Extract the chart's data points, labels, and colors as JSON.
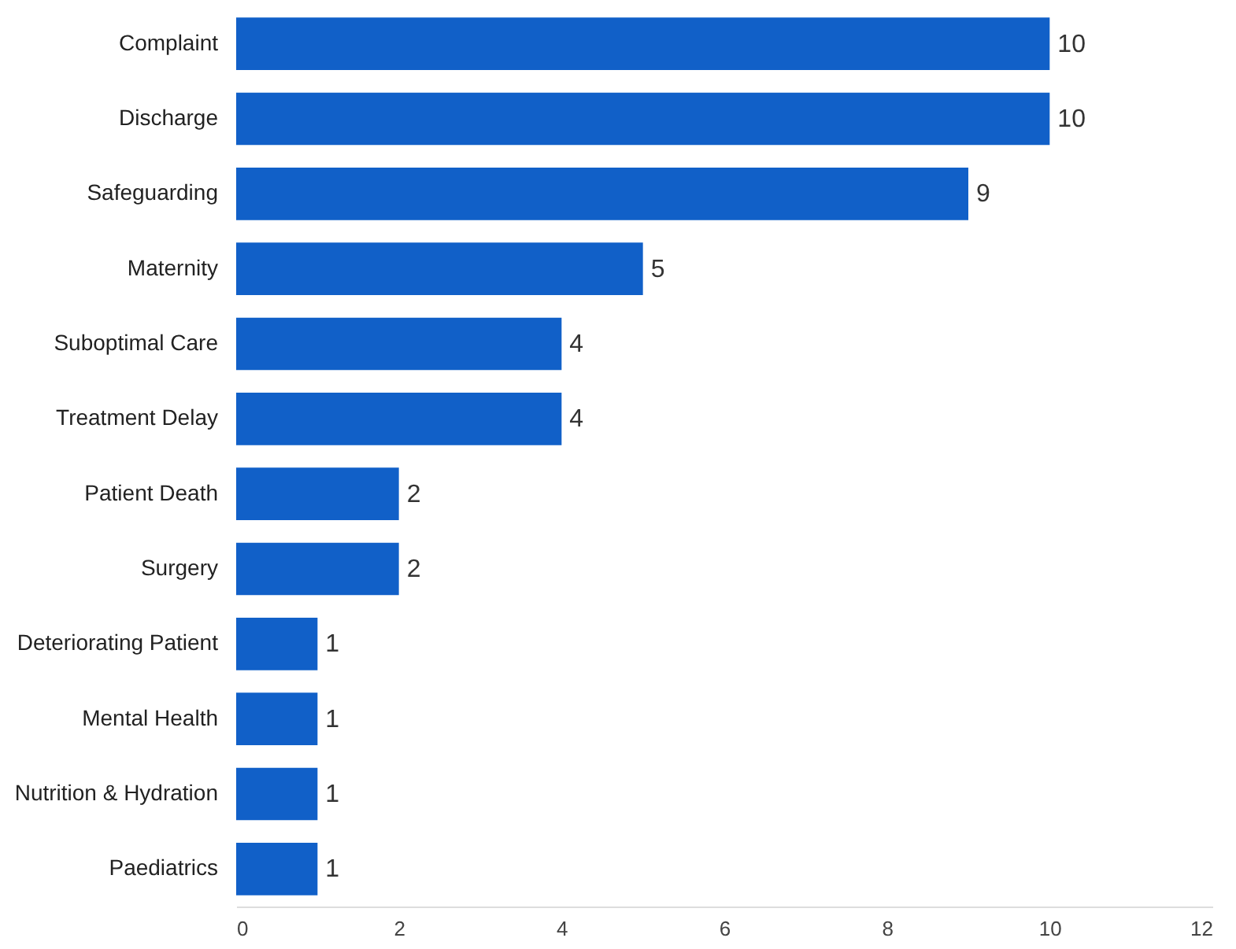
{
  "chart_data": {
    "type": "bar",
    "orientation": "horizontal",
    "categories": [
      "Complaint",
      "Discharge",
      "Safeguarding",
      "Maternity",
      "Suboptimal Care",
      "Treatment Delay",
      "Patient Death",
      "Surgery",
      "Deteriorating Patient",
      "Mental Health",
      "Nutrition & Hydration",
      "Paediatrics"
    ],
    "values": [
      10,
      10,
      9,
      5,
      4,
      4,
      2,
      2,
      1,
      1,
      1,
      1
    ],
    "color": "#1160c8",
    "xlim": [
      0,
      12
    ],
    "xticks": [
      0,
      2,
      4,
      6,
      8,
      10,
      12
    ],
    "grid": false,
    "data_labels": true
  }
}
